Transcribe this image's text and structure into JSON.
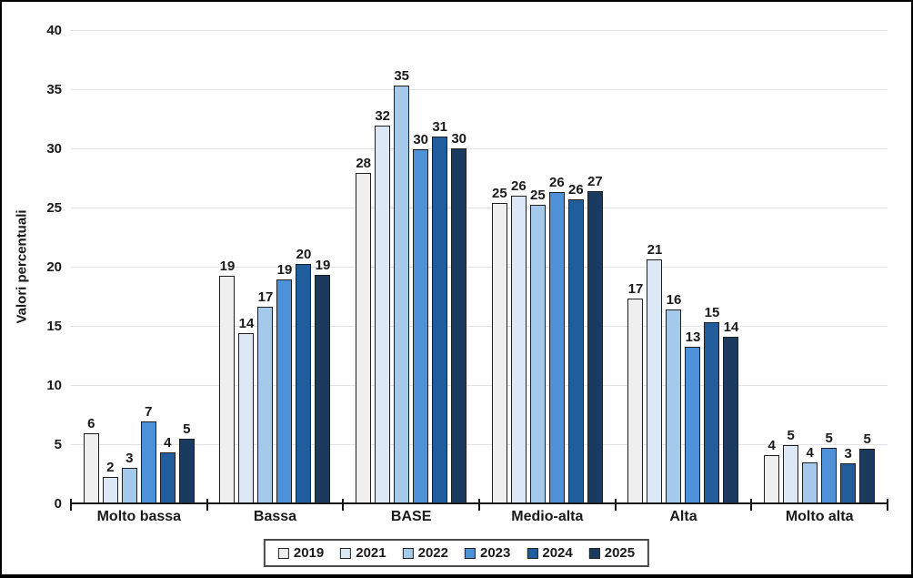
{
  "chart_data": {
    "type": "bar",
    "title": "",
    "xlabel": "",
    "ylabel": "Valori percentuali",
    "ylim": [
      0,
      40
    ],
    "yticks": [
      0,
      5,
      10,
      15,
      20,
      25,
      30,
      35,
      40
    ],
    "grid": true,
    "legend_position": "bottom",
    "categories": [
      "Molto bassa",
      "Bassa",
      "BASE",
      "Medio-alta",
      "Alta",
      "Molto alta"
    ],
    "series": [
      {
        "name": "2019",
        "color": "#EFEFEF",
        "values": [
          6,
          19,
          28,
          25,
          17,
          4
        ],
        "values_precise": [
          5.9,
          19.2,
          27.9,
          25.4,
          17.3,
          4.1
        ]
      },
      {
        "name": "2021",
        "color": "#DCE8F6",
        "values": [
          2,
          14,
          32,
          26,
          21,
          5
        ],
        "values_precise": [
          2.2,
          14.4,
          31.9,
          26.0,
          20.6,
          4.9
        ]
      },
      {
        "name": "2022",
        "color": "#A5C9EA",
        "values": [
          3,
          17,
          35,
          25,
          16,
          4
        ],
        "values_precise": [
          3.0,
          16.6,
          35.3,
          25.2,
          16.4,
          3.5
        ]
      },
      {
        "name": "2023",
        "color": "#4E91D9",
        "values": [
          7,
          19,
          30,
          26,
          13,
          5
        ],
        "values_precise": [
          6.9,
          18.9,
          29.9,
          26.3,
          13.2,
          4.7
        ]
      },
      {
        "name": "2024",
        "color": "#215C9C",
        "values": [
          4,
          20,
          31,
          26,
          15,
          3
        ],
        "values_precise": [
          4.3,
          20.2,
          31.0,
          25.7,
          15.3,
          3.4
        ]
      },
      {
        "name": "2025",
        "color": "#1B3A5F",
        "values": [
          5,
          19,
          30,
          27,
          14,
          5
        ],
        "values_precise": [
          5.5,
          19.3,
          30.0,
          26.4,
          14.1,
          4.6
        ]
      }
    ],
    "colors": {
      "bar_border": "#1F1F1F",
      "gridline": "#E3E3E3",
      "axis": "#151515",
      "text": "#1a1a1a"
    }
  }
}
